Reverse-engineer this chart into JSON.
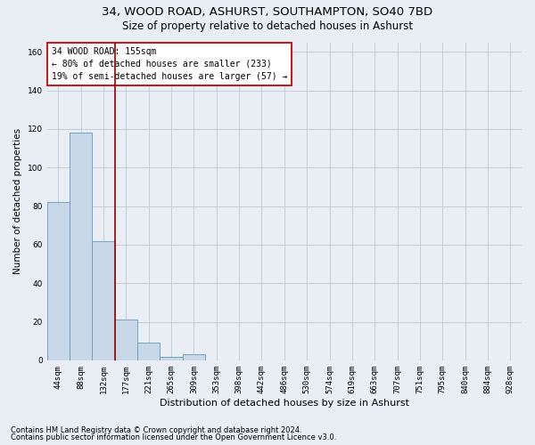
{
  "title1": "34, WOOD ROAD, ASHURST, SOUTHAMPTON, SO40 7BD",
  "title2": "Size of property relative to detached houses in Ashurst",
  "xlabel": "Distribution of detached houses by size in Ashurst",
  "ylabel": "Number of detached properties",
  "footnote1": "Contains HM Land Registry data © Crown copyright and database right 2024.",
  "footnote2": "Contains public sector information licensed under the Open Government Licence v3.0.",
  "categories": [
    "44sqm",
    "88sqm",
    "132sqm",
    "177sqm",
    "221sqm",
    "265sqm",
    "309sqm",
    "353sqm",
    "398sqm",
    "442sqm",
    "486sqm",
    "530sqm",
    "574sqm",
    "619sqm",
    "663sqm",
    "707sqm",
    "751sqm",
    "795sqm",
    "840sqm",
    "884sqm",
    "928sqm"
  ],
  "values": [
    82,
    118,
    62,
    21,
    9,
    2,
    3,
    0,
    0,
    0,
    0,
    0,
    0,
    0,
    0,
    0,
    0,
    0,
    0,
    0,
    0
  ],
  "bar_color": "#c8d8e8",
  "bar_edge_color": "#6699bb",
  "vline_color": "#990000",
  "vline_x_index": 2.5,
  "annotation_text": "34 WOOD ROAD: 155sqm\n← 80% of detached houses are smaller (233)\n19% of semi-detached houses are larger (57) →",
  "annotation_box_color": "#ffffff",
  "annotation_box_edge_color": "#cc0000",
  "ylim": [
    0,
    165
  ],
  "yticks": [
    0,
    20,
    40,
    60,
    80,
    100,
    120,
    140,
    160
  ],
  "grid_color": "#c0ccd8",
  "bg_color": "#e8eef4",
  "title_fontsize": 9.5,
  "subtitle_fontsize": 8.5,
  "ylabel_fontsize": 7.5,
  "xlabel_fontsize": 8,
  "tick_fontsize": 6.5,
  "annot_fontsize": 7,
  "footnote_fontsize": 6
}
